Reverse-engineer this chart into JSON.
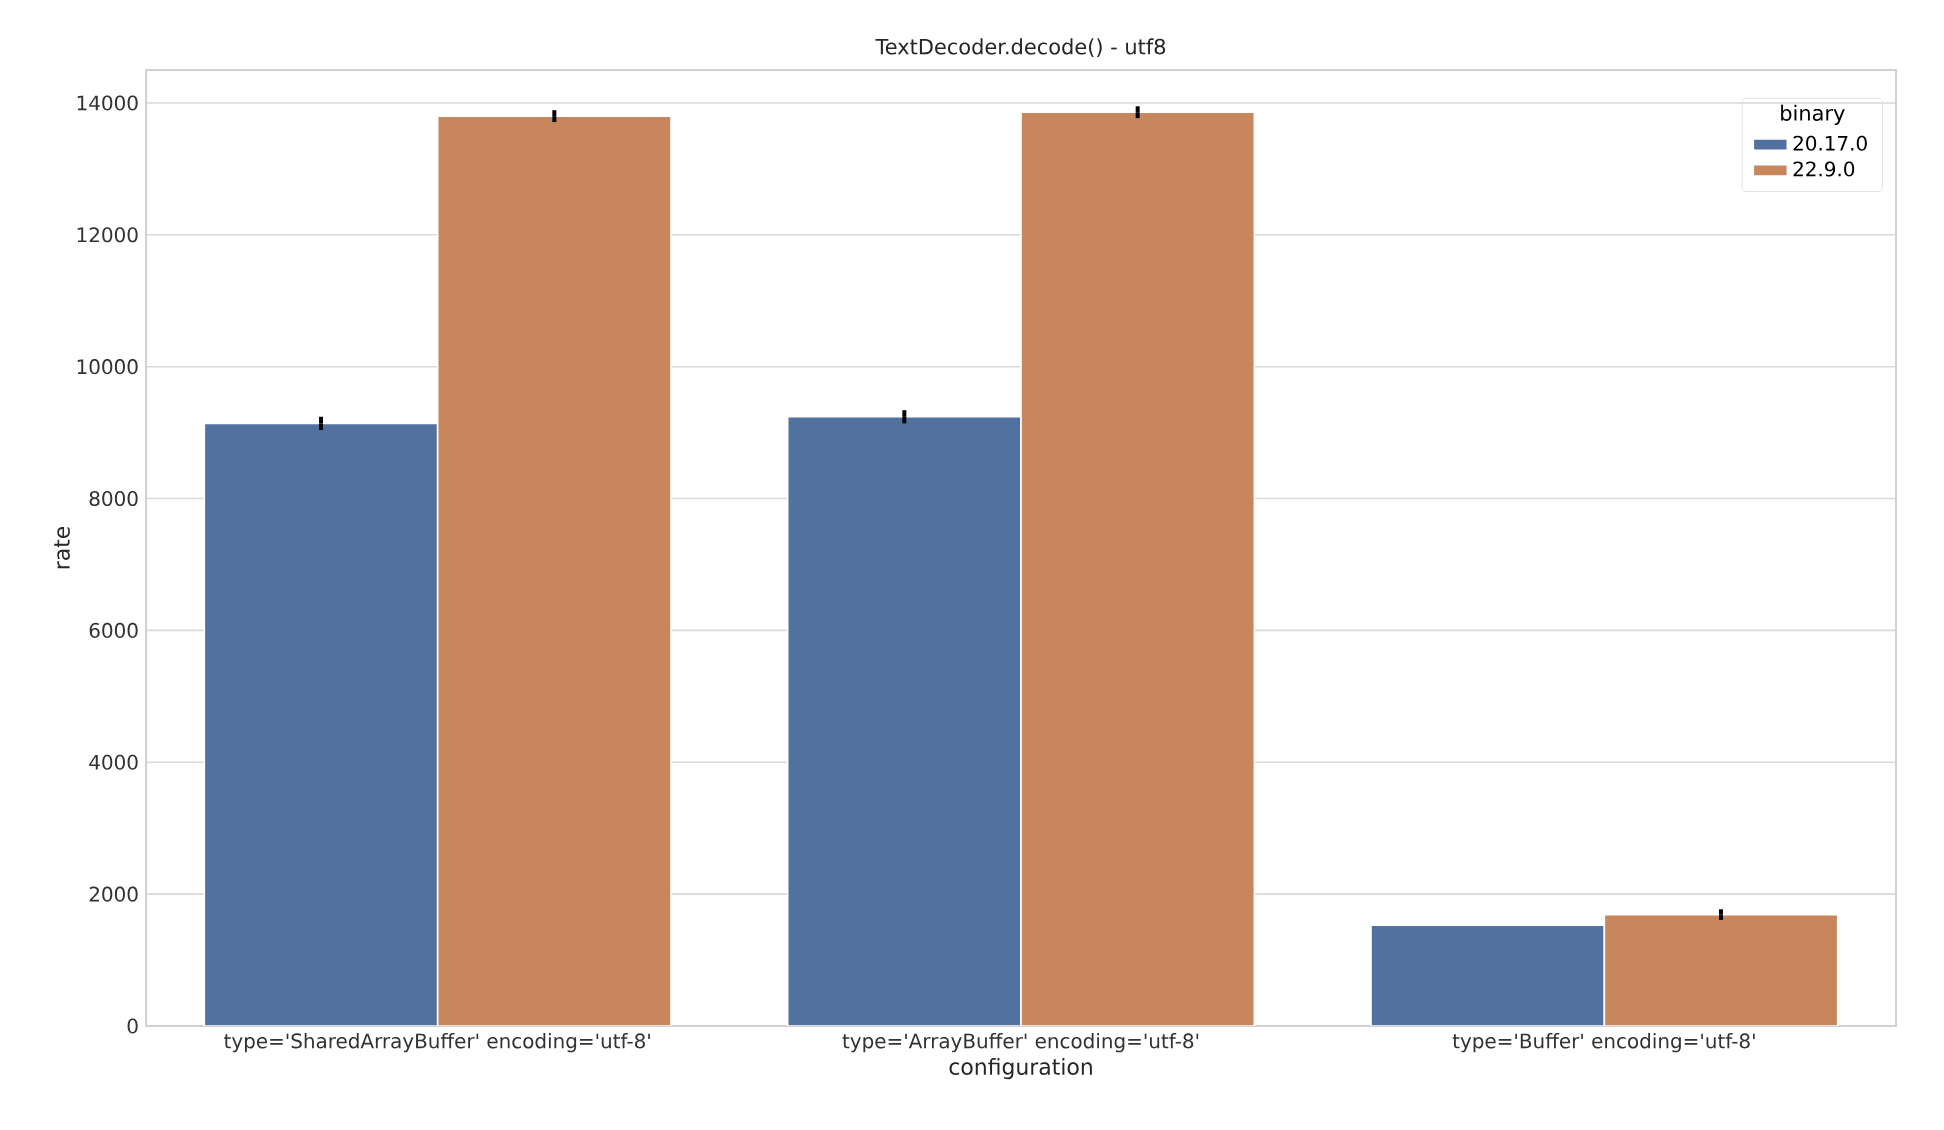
{
  "chart_data": {
    "type": "bar",
    "title": "TextDecoder.decode() - utf8",
    "xlabel": "configuration",
    "ylabel": "rate",
    "legend_title": "binary",
    "categories": [
      "type='SharedArrayBuffer' encoding='utf-8'",
      "type='ArrayBuffer' encoding='utf-8'",
      "type='Buffer' encoding='utf-8'"
    ],
    "series": [
      {
        "name": "20.17.0",
        "color": "#52719f",
        "values": [
          9140,
          9240,
          1530
        ],
        "errors": [
          100,
          100,
          null
        ]
      },
      {
        "name": "22.9.0",
        "color": "#c8865d",
        "values": [
          13800,
          13860,
          1690
        ],
        "errors": [
          90,
          90,
          80
        ]
      }
    ],
    "ylim": [
      0,
      14500
    ],
    "yticks": [
      0,
      2000,
      4000,
      6000,
      8000,
      10000,
      12000,
      14000
    ],
    "grid": "y",
    "legend": "top right"
  }
}
